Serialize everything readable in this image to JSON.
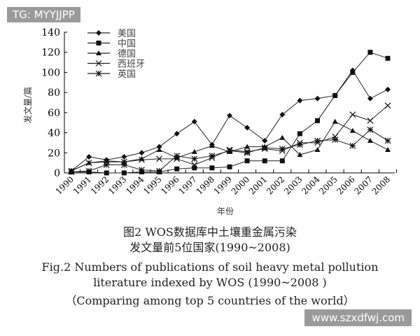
{
  "watermarks": {
    "top_left": "TG: MYYJJPP",
    "bottom_right": "www.szxdfwj.com"
  },
  "caption": {
    "cn_line1": "图2 WOS数据库中土壤重金属污染",
    "cn_line2": "发文量前5位国家(1990~2008)",
    "en_line1": "Fig.2  Numbers of publications of soil heavy metal pollution",
    "en_line2": "literature indexed by WOS (1990~2008 )",
    "en_line3": "（Comparing among top 5 countries of the world）"
  },
  "chart_data": {
    "type": "line",
    "xlabel": "年份",
    "ylabel": "发文量/篇",
    "ylim": [
      0,
      140
    ],
    "yticks": [
      0,
      20,
      40,
      60,
      80,
      100,
      120,
      140
    ],
    "x": [
      "1990",
      "1991",
      "1992",
      "1993",
      "1994",
      "1995",
      "1996",
      "1997",
      "1998",
      "1999",
      "2000",
      "2001",
      "2002",
      "2003",
      "2004",
      "2005",
      "2006",
      "2007",
      "2008"
    ],
    "legend_position": "top-left",
    "grid": false,
    "series": [
      {
        "name": "美国",
        "marker": "diamond",
        "values": [
          2,
          16,
          13,
          16,
          20,
          26,
          39,
          51,
          28,
          57,
          45,
          32,
          58,
          72,
          74,
          77,
          102,
          74,
          83
        ]
      },
      {
        "name": "中国",
        "marker": "square",
        "values": [
          1,
          1,
          0,
          0,
          1,
          1,
          4,
          5,
          5,
          6,
          12,
          12,
          12,
          39,
          52,
          77,
          100,
          120,
          114
        ]
      },
      {
        "name": "德国",
        "marker": "triangle",
        "values": [
          2,
          10,
          12,
          11,
          14,
          23,
          15,
          21,
          27,
          21,
          26,
          26,
          35,
          18,
          23,
          51,
          42,
          32,
          23
        ]
      },
      {
        "name": "西班牙",
        "marker": "x",
        "values": [
          2,
          10,
          11,
          11,
          13,
          14,
          14,
          8,
          15,
          23,
          21,
          24,
          22,
          30,
          30,
          36,
          58,
          52,
          67
        ]
      },
      {
        "name": "英国",
        "marker": "star",
        "values": [
          1,
          2,
          8,
          8,
          3,
          2,
          17,
          14,
          17,
          22,
          20,
          25,
          24,
          28,
          32,
          33,
          27,
          43,
          32
        ]
      }
    ]
  }
}
